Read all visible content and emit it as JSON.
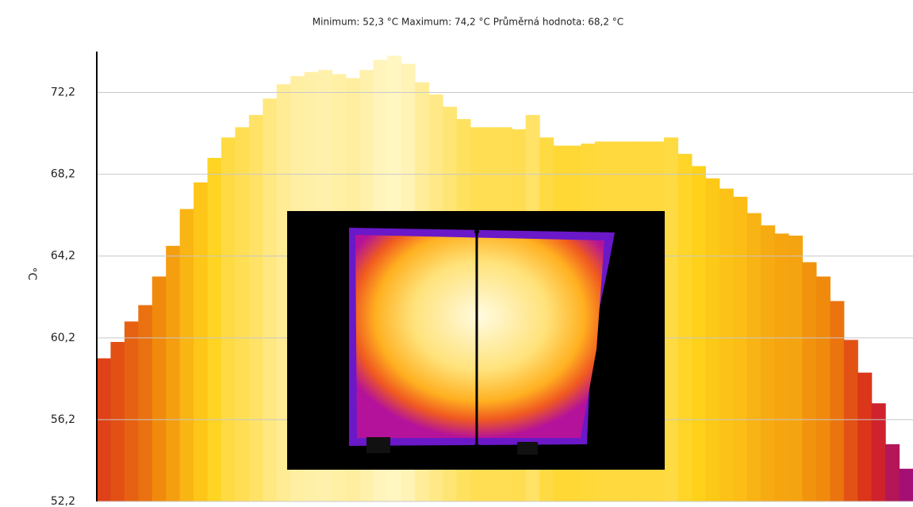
{
  "chart_data": {
    "type": "area",
    "title": "Minimum:  52,3  °C Maximum:  74,2  °C Průměrná hodnota: 68,2  °C",
    "y_label": "°C",
    "values": [
      59.2,
      60.0,
      61.0,
      61.8,
      63.2,
      64.7,
      66.5,
      67.8,
      69.0,
      70.0,
      70.5,
      71.1,
      71.9,
      72.6,
      73.0,
      73.2,
      73.3,
      73.1,
      72.9,
      73.3,
      73.8,
      74.0,
      73.6,
      72.7,
      72.1,
      71.5,
      70.9,
      70.5,
      70.5,
      70.5,
      70.4,
      71.1,
      70.0,
      69.6,
      69.6,
      69.7,
      69.8,
      69.8,
      69.8,
      69.8,
      69.8,
      70.0,
      69.2,
      68.6,
      68.0,
      67.5,
      67.1,
      66.3,
      65.7,
      65.3,
      65.2,
      63.9,
      63.2,
      62.0,
      60.1,
      58.5,
      57.0,
      55.0,
      53.8
    ],
    "colormap": [
      "#8e0596",
      "#d8261c",
      "#f08a0c",
      "#ffd21a",
      "#fff7c8"
    ],
    "ylim": [
      52.2,
      74.2
    ],
    "yticks": [
      {
        "value": 52.2,
        "label": "52,2"
      },
      {
        "value": 56.2,
        "label": "56,2"
      },
      {
        "value": 60.2,
        "label": "60,2"
      },
      {
        "value": 64.2,
        "label": "64,2"
      },
      {
        "value": 68.2,
        "label": "68,2"
      },
      {
        "value": 72.2,
        "label": "72,2"
      }
    ],
    "grid": true
  }
}
